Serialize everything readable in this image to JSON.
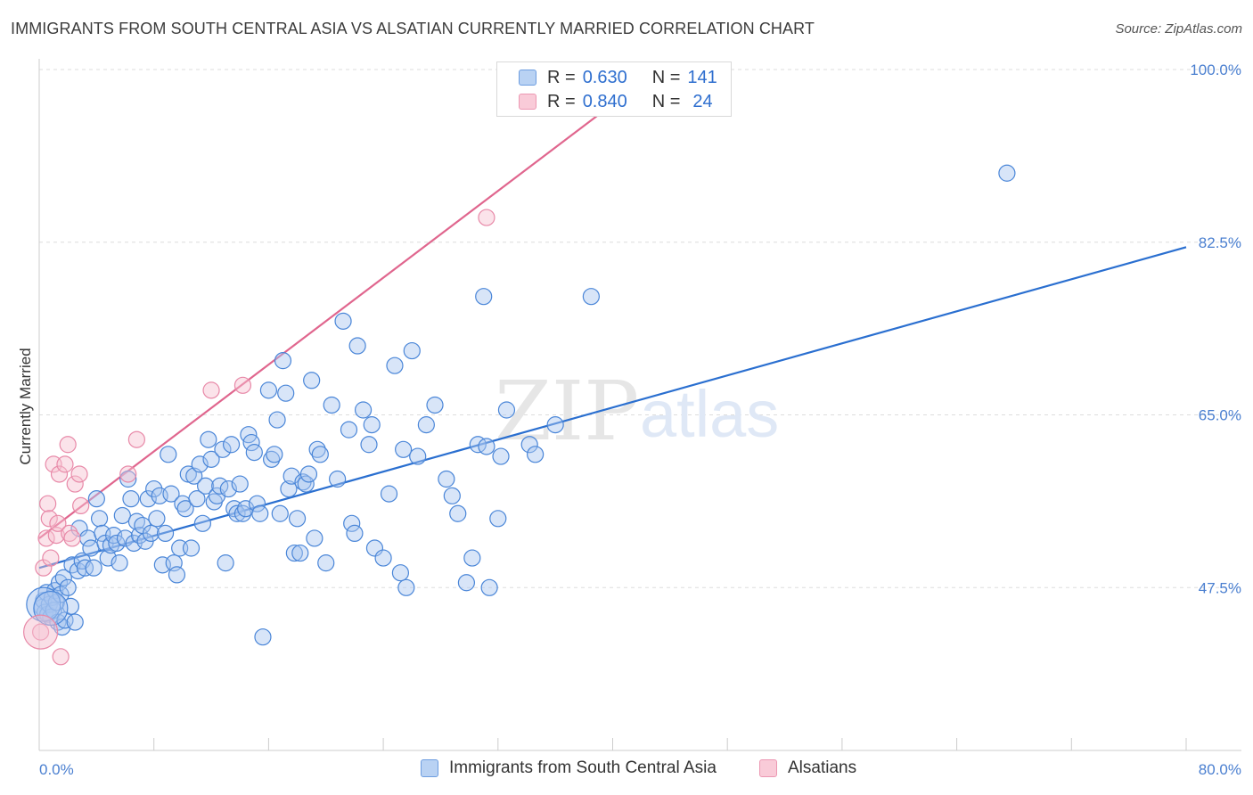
{
  "title": "IMMIGRANTS FROM SOUTH CENTRAL ASIA VS ALSATIAN CURRENTLY MARRIED CORRELATION CHART",
  "source": "Source: ZipAtlas.com",
  "watermark": {
    "zip": "ZIP",
    "atlas": "atlas"
  },
  "legend": {
    "series1": {
      "r_label": "R =",
      "r_value": "0.630",
      "n_label": "N =",
      "n_value": "141"
    },
    "series2": {
      "r_label": "R =",
      "r_value": "0.840",
      "n_label": "N =",
      "n_value": "24"
    }
  },
  "colors": {
    "blue": "#4a86d8",
    "blue_fill": "#a9c6f0",
    "blue_line": "#2a6fd0",
    "pink": "#e889a8",
    "pink_fill": "#f6c0d0",
    "pink_line": "#e0668e",
    "grid": "#dddddd",
    "tick_label": "#4a7fd0"
  },
  "chart_data": {
    "type": "scatter",
    "xlabel": "",
    "ylabel": "Currently Married",
    "xlim": [
      0,
      80
    ],
    "ylim": [
      31,
      100
    ],
    "x_tick_labels": [
      "0.0%",
      "80.0%"
    ],
    "y_ticks": [
      47.5,
      65.0,
      82.5,
      100.0
    ],
    "y_tick_labels": [
      "47.5%",
      "65.0%",
      "82.5%",
      "100.0%"
    ],
    "grid": "horizontal dashed",
    "legend_position": "top-center",
    "series": [
      {
        "name": "Immigrants from South Central Asia",
        "color": "blue",
        "trendline": {
          "x": [
            0,
            80
          ],
          "y": [
            49.5,
            82.0
          ]
        },
        "points": [
          [
            0.2,
            45.5
          ],
          [
            0.3,
            46.2
          ],
          [
            0.4,
            45.0
          ],
          [
            0.5,
            47.0
          ],
          [
            0.6,
            44.8
          ],
          [
            0.7,
            45.8
          ],
          [
            0.8,
            44.5
          ],
          [
            0.9,
            46.5
          ],
          [
            1.0,
            45.2
          ],
          [
            1.1,
            47.2
          ],
          [
            1.2,
            46.0
          ],
          [
            1.3,
            44.0
          ],
          [
            1.4,
            48.0
          ],
          [
            1.5,
            46.8
          ],
          [
            1.6,
            43.5
          ],
          [
            1.7,
            48.5
          ],
          [
            1.8,
            44.2
          ],
          [
            2.0,
            47.5
          ],
          [
            2.2,
            45.6
          ],
          [
            2.3,
            49.8
          ],
          [
            2.5,
            44.0
          ],
          [
            2.7,
            49.2
          ],
          [
            2.8,
            53.5
          ],
          [
            3.0,
            50.2
          ],
          [
            3.2,
            49.5
          ],
          [
            3.4,
            52.5
          ],
          [
            3.6,
            51.5
          ],
          [
            3.8,
            49.5
          ],
          [
            4.0,
            56.5
          ],
          [
            4.2,
            54.5
          ],
          [
            4.4,
            53.0
          ],
          [
            4.6,
            52.0
          ],
          [
            4.8,
            50.5
          ],
          [
            5.0,
            51.8
          ],
          [
            5.2,
            52.8
          ],
          [
            5.4,
            52.0
          ],
          [
            5.6,
            50.0
          ],
          [
            5.8,
            54.8
          ],
          [
            6.0,
            52.5
          ],
          [
            6.2,
            58.5
          ],
          [
            6.4,
            56.5
          ],
          [
            6.6,
            52.0
          ],
          [
            6.8,
            54.2
          ],
          [
            7.0,
            52.8
          ],
          [
            7.2,
            53.8
          ],
          [
            7.4,
            52.2
          ],
          [
            7.6,
            56.5
          ],
          [
            7.8,
            53.0
          ],
          [
            8.0,
            57.5
          ],
          [
            8.2,
            54.5
          ],
          [
            8.4,
            56.8
          ],
          [
            8.6,
            49.8
          ],
          [
            8.8,
            53.0
          ],
          [
            9.0,
            61.0
          ],
          [
            9.2,
            57.0
          ],
          [
            9.4,
            50.0
          ],
          [
            9.6,
            48.8
          ],
          [
            9.8,
            51.5
          ],
          [
            10.0,
            56.0
          ],
          [
            10.2,
            55.5
          ],
          [
            10.4,
            59.0
          ],
          [
            10.6,
            51.5
          ],
          [
            10.8,
            58.8
          ],
          [
            11.0,
            56.5
          ],
          [
            11.2,
            60.0
          ],
          [
            11.4,
            54.0
          ],
          [
            11.6,
            57.8
          ],
          [
            11.8,
            62.5
          ],
          [
            12.0,
            60.5
          ],
          [
            12.2,
            56.2
          ],
          [
            12.4,
            56.8
          ],
          [
            12.6,
            57.8
          ],
          [
            12.8,
            61.5
          ],
          [
            13.0,
            50.0
          ],
          [
            13.2,
            57.5
          ],
          [
            13.4,
            62.0
          ],
          [
            13.6,
            55.5
          ],
          [
            13.8,
            55.0
          ],
          [
            14.0,
            58.0
          ],
          [
            14.2,
            55.0
          ],
          [
            14.4,
            55.5
          ],
          [
            14.6,
            63.0
          ],
          [
            14.8,
            62.2
          ],
          [
            15.0,
            61.2
          ],
          [
            15.2,
            56.0
          ],
          [
            15.4,
            55.0
          ],
          [
            15.6,
            42.5
          ],
          [
            16.0,
            67.5
          ],
          [
            16.2,
            60.5
          ],
          [
            16.4,
            61.0
          ],
          [
            16.6,
            64.5
          ],
          [
            16.8,
            55.0
          ],
          [
            17.0,
            70.5
          ],
          [
            17.2,
            67.2
          ],
          [
            17.4,
            57.5
          ],
          [
            17.6,
            58.8
          ],
          [
            17.8,
            51.0
          ],
          [
            18.0,
            54.5
          ],
          [
            18.2,
            51.0
          ],
          [
            18.4,
            58.2
          ],
          [
            18.6,
            58.0
          ],
          [
            18.8,
            59.0
          ],
          [
            19.0,
            68.5
          ],
          [
            19.2,
            52.5
          ],
          [
            19.4,
            61.5
          ],
          [
            19.6,
            61.0
          ],
          [
            20.0,
            50.0
          ],
          [
            20.4,
            66.0
          ],
          [
            20.8,
            58.5
          ],
          [
            21.2,
            74.5
          ],
          [
            21.6,
            63.5
          ],
          [
            21.8,
            54.0
          ],
          [
            22.0,
            53.0
          ],
          [
            22.2,
            72.0
          ],
          [
            22.6,
            65.5
          ],
          [
            23.0,
            62.0
          ],
          [
            23.2,
            64.0
          ],
          [
            23.4,
            51.5
          ],
          [
            24.0,
            50.5
          ],
          [
            24.4,
            57.0
          ],
          [
            24.8,
            70.0
          ],
          [
            25.2,
            49.0
          ],
          [
            25.6,
            47.5
          ],
          [
            25.4,
            61.5
          ],
          [
            26.0,
            71.5
          ],
          [
            26.4,
            60.8
          ],
          [
            27.0,
            64.0
          ],
          [
            27.6,
            66.0
          ],
          [
            28.4,
            58.5
          ],
          [
            28.8,
            56.8
          ],
          [
            29.8,
            48.0
          ],
          [
            29.2,
            55.0
          ],
          [
            30.2,
            50.5
          ],
          [
            30.6,
            62.0
          ],
          [
            31.0,
            77.0
          ],
          [
            31.2,
            61.8
          ],
          [
            31.4,
            47.5
          ],
          [
            32.0,
            54.5
          ],
          [
            32.2,
            60.8
          ],
          [
            32.6,
            65.5
          ],
          [
            34.2,
            62.0
          ],
          [
            34.6,
            61.0
          ],
          [
            36.0,
            64.0
          ],
          [
            38.5,
            77.0
          ],
          [
            67.5,
            89.5
          ]
        ],
        "big_points": [
          [
            0.3,
            45.8
          ],
          [
            0.8,
            45.4
          ]
        ]
      },
      {
        "name": "Alsatians",
        "color": "pink",
        "trendline": {
          "x": [
            0,
            40
          ],
          "y": [
            52.5,
            96.5
          ]
        },
        "points": [
          [
            0.1,
            43.0
          ],
          [
            0.3,
            49.5
          ],
          [
            0.5,
            52.5
          ],
          [
            0.6,
            56.0
          ],
          [
            0.7,
            54.5
          ],
          [
            0.8,
            50.5
          ],
          [
            1.0,
            60.0
          ],
          [
            1.2,
            52.8
          ],
          [
            1.3,
            54.0
          ],
          [
            1.4,
            59.0
          ],
          [
            1.5,
            40.5
          ],
          [
            1.8,
            60.0
          ],
          [
            2.0,
            62.0
          ],
          [
            2.1,
            53.0
          ],
          [
            2.3,
            52.5
          ],
          [
            2.5,
            58.0
          ],
          [
            2.8,
            59.0
          ],
          [
            2.9,
            55.8
          ],
          [
            6.2,
            59.0
          ],
          [
            6.8,
            62.5
          ],
          [
            12.0,
            67.5
          ],
          [
            14.2,
            68.0
          ],
          [
            31.2,
            85.0
          ]
        ],
        "big_points": [
          [
            0.1,
            43.0
          ]
        ]
      }
    ]
  },
  "bottom_legend": {
    "series1_label": "Immigrants from South Central Asia",
    "series2_label": "Alsatians"
  }
}
